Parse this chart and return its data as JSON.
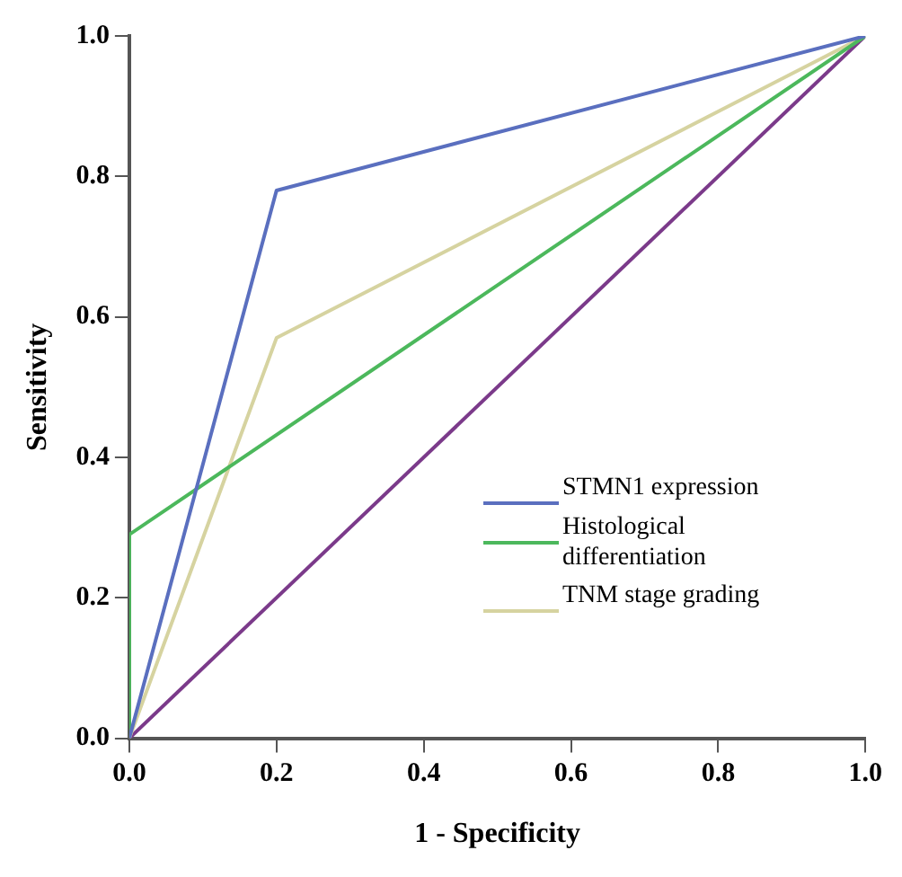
{
  "chart_data": {
    "type": "line",
    "xlabel": "1 - Specificity",
    "ylabel": "Sensitivity",
    "xlim": [
      0,
      1
    ],
    "ylim": [
      0,
      1
    ],
    "xticks": [
      {
        "value": 0,
        "label": "0.0"
      },
      {
        "value": 0.2,
        "label": "0.2"
      },
      {
        "value": 0.4,
        "label": "0.4"
      },
      {
        "value": 0.6,
        "label": "0.6"
      },
      {
        "value": 0.8,
        "label": "0.8"
      },
      {
        "value": 1,
        "label": "1.0"
      }
    ],
    "yticks": [
      {
        "value": 0,
        "label": "0.0"
      },
      {
        "value": 0.2,
        "label": "0.2"
      },
      {
        "value": 0.4,
        "label": "0.4"
      },
      {
        "value": 0.6,
        "label": "0.6"
      },
      {
        "value": 0.8,
        "label": "0.8"
      },
      {
        "value": 1,
        "label": "1.0"
      }
    ],
    "grid": false,
    "legend": "right",
    "marker": "none",
    "line_style": "solid",
    "series": [
      {
        "name": "STMN1 expression",
        "color": "#5a6fbf",
        "x": [
          0,
          0.2,
          1
        ],
        "values": [
          0,
          0.78,
          1
        ]
      },
      {
        "name": "Histological differentiation",
        "color": "#4cb85c",
        "x": [
          0,
          0,
          1
        ],
        "values": [
          0,
          0.29,
          1
        ]
      },
      {
        "name": "TNM stage grading",
        "color": "#d6d3a0",
        "x": [
          0,
          0.2,
          1
        ],
        "values": [
          0,
          0.57,
          1
        ]
      },
      {
        "color": "#7b3a8a",
        "x": [
          0,
          1
        ],
        "values": [
          0,
          1
        ]
      }
    ]
  }
}
